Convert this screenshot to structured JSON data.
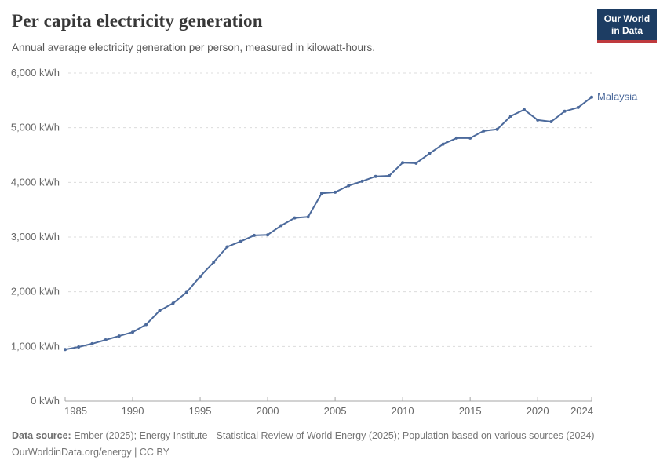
{
  "header": {
    "title": "Per capita electricity generation",
    "subtitle": "Annual average electricity generation per person, measured in kilowatt-hours.",
    "logo": {
      "line1": "Our World",
      "line2": "in Data",
      "bg_color": "#1d3d63",
      "accent_color": "#bf3a3e"
    }
  },
  "chart_data": {
    "type": "line",
    "title": "Per capita electricity generation",
    "subtitle": "Annual average electricity generation per person, measured in kilowatt-hours.",
    "xlabel": "",
    "ylabel": "",
    "xlim": [
      1985,
      2024
    ],
    "ylim": [
      0,
      6000
    ],
    "grid": "horizontal-dashed",
    "legend_position": "end-of-line-label",
    "x_ticks": [
      1985,
      1990,
      1995,
      2000,
      2005,
      2010,
      2015,
      2020,
      2024
    ],
    "x_tick_labels": [
      "1985",
      "1990",
      "1995",
      "2000",
      "2005",
      "2010",
      "2015",
      "2020",
      "2024"
    ],
    "y_ticks": [
      0,
      1000,
      2000,
      3000,
      4000,
      5000,
      6000
    ],
    "y_tick_labels": [
      "0 kWh",
      "1,000 kWh",
      "2,000 kWh",
      "3,000 kWh",
      "4,000 kWh",
      "5,000 kWh",
      "6,000 kWh"
    ],
    "series": [
      {
        "name": "Malaysia",
        "color": "#4c6a9c",
        "x": [
          1985,
          1986,
          1987,
          1988,
          1989,
          1990,
          1991,
          1992,
          1993,
          1994,
          1995,
          1996,
          1997,
          1998,
          1999,
          2000,
          2001,
          2002,
          2003,
          2004,
          2005,
          2006,
          2007,
          2008,
          2009,
          2010,
          2011,
          2012,
          2013,
          2014,
          2015,
          2016,
          2017,
          2018,
          2019,
          2020,
          2021,
          2022,
          2023,
          2024
        ],
        "values": [
          945,
          990,
          1050,
          1120,
          1190,
          1260,
          1400,
          1655,
          1790,
          1990,
          2280,
          2540,
          2820,
          2920,
          3030,
          3040,
          3210,
          3350,
          3370,
          3800,
          3820,
          3940,
          4020,
          4110,
          4120,
          4360,
          4350,
          4530,
          4700,
          4810,
          4810,
          4940,
          4970,
          5210,
          5330,
          5140,
          5110,
          5300,
          5370,
          5560
        ]
      }
    ],
    "entity_label": "Malaysia"
  },
  "footer": {
    "source_label": "Data source:",
    "source_text": " Ember (2025); Energy Institute - Statistical Review of World Energy (2025); Population based on various sources (2024)",
    "license_text": "OurWorldinData.org/energy | CC BY"
  },
  "style": {
    "line_color": "#4c6a9c",
    "gridline_color": "#dcdcdc",
    "axis_color": "#a5a5a5",
    "tick_label_color": "#666666"
  }
}
